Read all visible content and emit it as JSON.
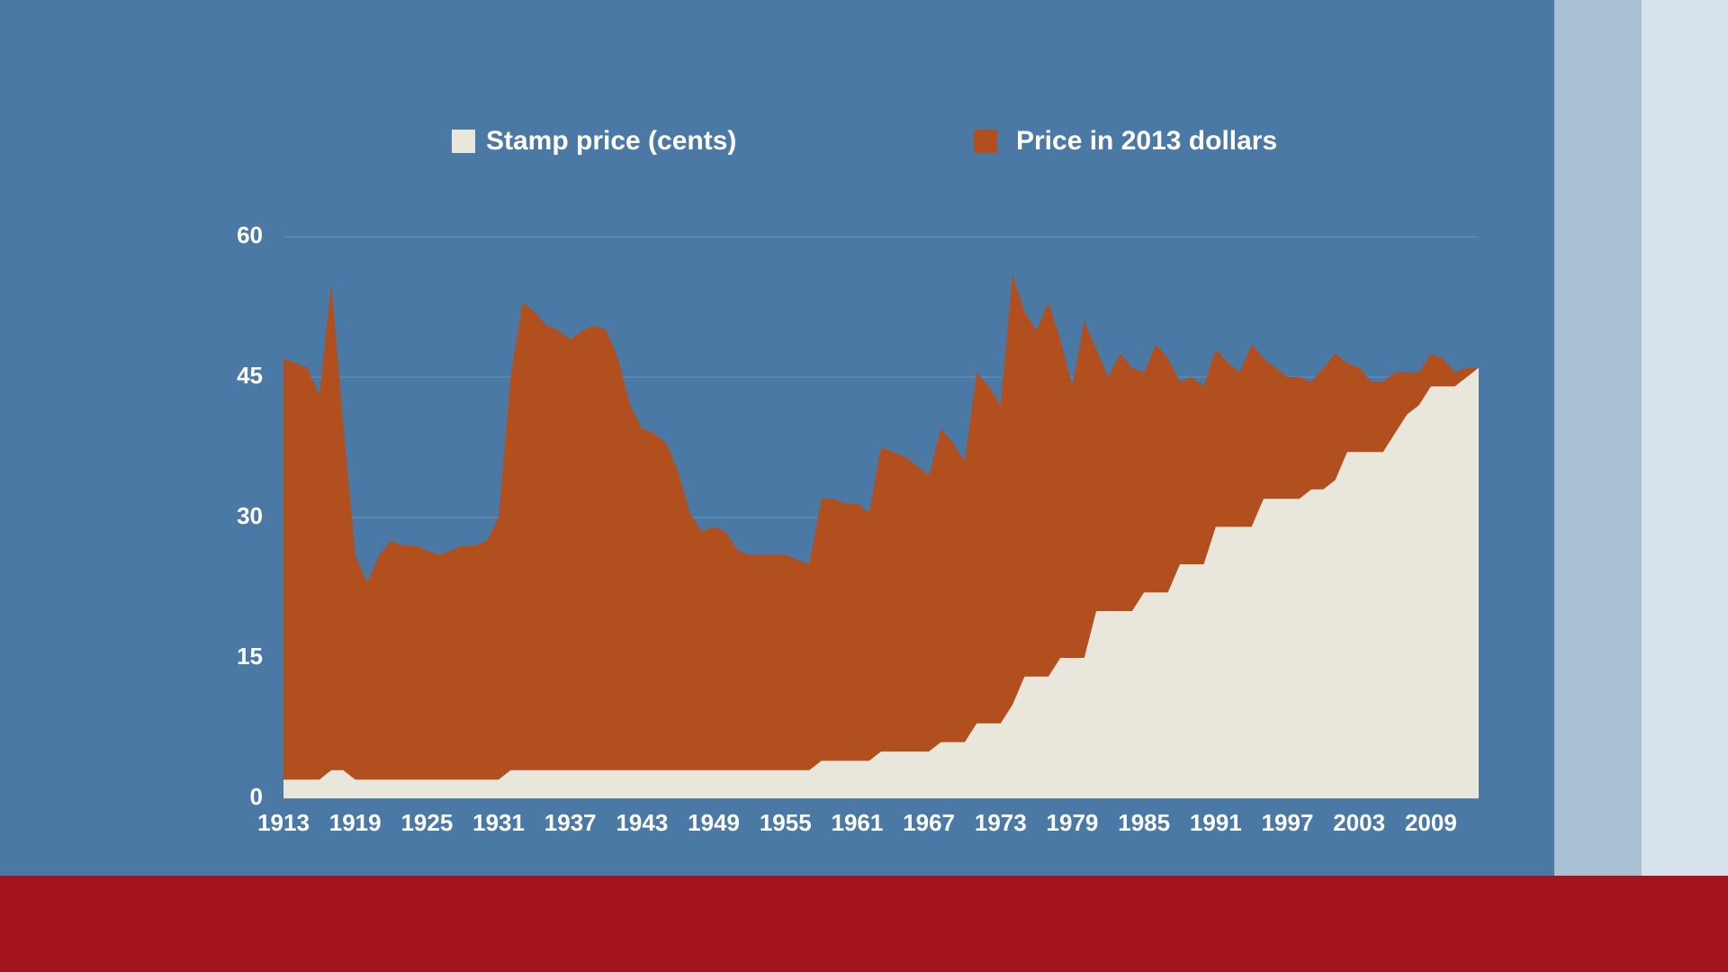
{
  "chart_data": {
    "type": "area",
    "x": [
      1913,
      1914,
      1915,
      1916,
      1917,
      1918,
      1919,
      1920,
      1921,
      1922,
      1923,
      1924,
      1925,
      1926,
      1927,
      1928,
      1929,
      1930,
      1931,
      1932,
      1933,
      1934,
      1935,
      1936,
      1937,
      1938,
      1939,
      1940,
      1941,
      1942,
      1943,
      1944,
      1945,
      1946,
      1947,
      1948,
      1949,
      1950,
      1951,
      1952,
      1953,
      1954,
      1955,
      1956,
      1957,
      1958,
      1959,
      1960,
      1961,
      1962,
      1963,
      1964,
      1965,
      1966,
      1967,
      1968,
      1969,
      1970,
      1971,
      1972,
      1973,
      1974,
      1975,
      1976,
      1977,
      1978,
      1979,
      1980,
      1981,
      1982,
      1983,
      1984,
      1985,
      1986,
      1987,
      1988,
      1989,
      1990,
      1991,
      1992,
      1993,
      1994,
      1995,
      1996,
      1997,
      1998,
      1999,
      2000,
      2001,
      2002,
      2003,
      2004,
      2005,
      2006,
      2007,
      2008,
      2009,
      2010,
      2011,
      2012,
      2013
    ],
    "series": [
      {
        "name": "Price in 2013 dollars",
        "color": "#b24f1f",
        "values": [
          47,
          46.5,
          46,
          43,
          55,
          40,
          26,
          23,
          26,
          27.5,
          27,
          27,
          26.5,
          26,
          26.5,
          27,
          27,
          27.5,
          30,
          45,
          53,
          52,
          50.5,
          50,
          49,
          50,
          50.5,
          50,
          47,
          42,
          39.5,
          39,
          38,
          35,
          30.5,
          28.5,
          29,
          28.5,
          26.5,
          26,
          26,
          26,
          26,
          25.5,
          25,
          32,
          32,
          31.5,
          31.5,
          30.5,
          37.5,
          37,
          36.5,
          35.5,
          34.5,
          39.5,
          38,
          36,
          45.5,
          44,
          42,
          56,
          52,
          50,
          53,
          49,
          44,
          51,
          48,
          45,
          47.5,
          46,
          45.5,
          48.5,
          47,
          44.5,
          45,
          44,
          48,
          46.5,
          45.5,
          48.5,
          47,
          46,
          45,
          45,
          44.5,
          46,
          47.5,
          46.5,
          46,
          44.5,
          44.5,
          45.5,
          45.5,
          45.5,
          47.5,
          47,
          45.5,
          46,
          46
        ]
      },
      {
        "name": "Stamp price (cents)",
        "color": "#e9e6dc",
        "values": [
          2,
          2,
          2,
          2,
          3,
          3,
          2,
          2,
          2,
          2,
          2,
          2,
          2,
          2,
          2,
          2,
          2,
          2,
          2,
          3,
          3,
          3,
          3,
          3,
          3,
          3,
          3,
          3,
          3,
          3,
          3,
          3,
          3,
          3,
          3,
          3,
          3,
          3,
          3,
          3,
          3,
          3,
          3,
          3,
          3,
          4,
          4,
          4,
          4,
          4,
          5,
          5,
          5,
          5,
          5,
          6,
          6,
          6,
          8,
          8,
          8,
          10,
          13,
          13,
          13,
          15,
          15,
          15,
          20,
          20,
          20,
          20,
          22,
          22,
          22,
          25,
          25,
          25,
          29,
          29,
          29,
          29,
          32,
          32,
          32,
          32,
          33,
          33,
          34,
          37,
          37,
          37,
          37,
          39,
          41,
          42,
          44,
          44,
          44,
          45,
          46
        ]
      }
    ],
    "xlim": [
      1913,
      2013
    ],
    "xticks": [
      1913,
      1919,
      1925,
      1931,
      1937,
      1943,
      1949,
      1955,
      1961,
      1967,
      1973,
      1979,
      1985,
      1991,
      1997,
      2003,
      2009
    ],
    "ylim": [
      0,
      60
    ],
    "yticks": [
      0,
      15,
      30,
      45,
      60
    ],
    "grid": true
  }
}
